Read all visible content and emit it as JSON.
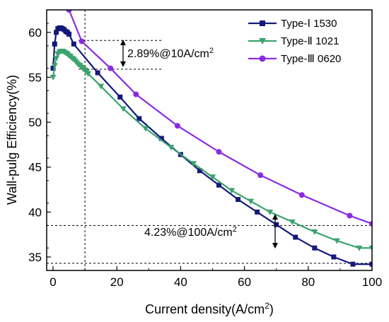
{
  "chart_data": {
    "type": "line",
    "xlabel": "Current density(A/cm",
    "xlabel_sup": "2",
    "xlabel_end": ")",
    "ylabel": "Wall-pulg Efficiency(%)",
    "xlim": [
      -2,
      100
    ],
    "ylim": [
      33.5,
      62.5
    ],
    "xticks": [
      0,
      20,
      40,
      60,
      80,
      100
    ],
    "yticks": [
      35,
      40,
      45,
      50,
      55,
      60
    ],
    "series": [
      {
        "name": "Type-Ⅰ 1530",
        "color": "#13197a",
        "marker": "square",
        "x": [
          0,
          0.5,
          1,
          1.5,
          2,
          2.5,
          3,
          3.5,
          4,
          4.5,
          5,
          6.5,
          14,
          21,
          27,
          34,
          40,
          46,
          52,
          58,
          64,
          70,
          76,
          82,
          88,
          94,
          100
        ],
        "y": [
          56.0,
          58.7,
          60.0,
          60.4,
          60.5,
          60.5,
          60.4,
          60.3,
          60.1,
          60.0,
          59.8,
          58.7,
          55.5,
          52.8,
          50.4,
          48.2,
          46.4,
          44.6,
          43.0,
          41.4,
          40.0,
          38.6,
          37.2,
          36.0,
          35.0,
          34.2,
          34.2
        ]
      },
      {
        "name": "Type-Ⅱ 1021",
        "color": "#3aa36e",
        "marker": "triangle-down",
        "x": [
          0,
          0.5,
          1,
          1.5,
          2,
          2.5,
          3,
          3.5,
          4,
          4.5,
          5,
          5.5,
          6,
          6.5,
          7,
          7.5,
          8,
          8.5,
          9,
          9.5,
          10,
          10.5,
          11,
          15,
          22,
          29,
          37,
          44,
          50,
          56,
          62,
          68,
          75,
          82,
          89,
          96,
          100
        ],
        "y": [
          55.0,
          56.3,
          57.1,
          57.6,
          57.8,
          57.9,
          57.9,
          57.8,
          57.7,
          57.6,
          57.4,
          57.3,
          57.1,
          57.0,
          56.8,
          56.6,
          56.4,
          56.3,
          56.1,
          55.9,
          55.8,
          55.6,
          55.4,
          54.0,
          51.5,
          49.3,
          47.2,
          45.4,
          43.9,
          42.4,
          41.2,
          40.0,
          38.9,
          37.8,
          36.8,
          36.0,
          36.0
        ]
      },
      {
        "name": "Type-Ⅲ 0620",
        "color": "#8a2be2",
        "marker": "circle",
        "x": [
          5,
          9,
          18,
          26,
          39,
          52,
          65,
          78,
          93,
          100
        ],
        "y": [
          62.5,
          59.0,
          56.0,
          53.1,
          49.6,
          46.7,
          44.1,
          41.9,
          39.6,
          38.7
        ]
      }
    ],
    "legend": "top-right",
    "annotations": [
      {
        "label": "2.89%@10A/cm",
        "sup": "2"
      },
      {
        "label": "4.23%@100A/cm",
        "sup": "2"
      }
    ],
    "reference_lines": {
      "vertical_x": 10,
      "horizontal": [
        59.1,
        55.9,
        38.5,
        34.3
      ]
    }
  }
}
